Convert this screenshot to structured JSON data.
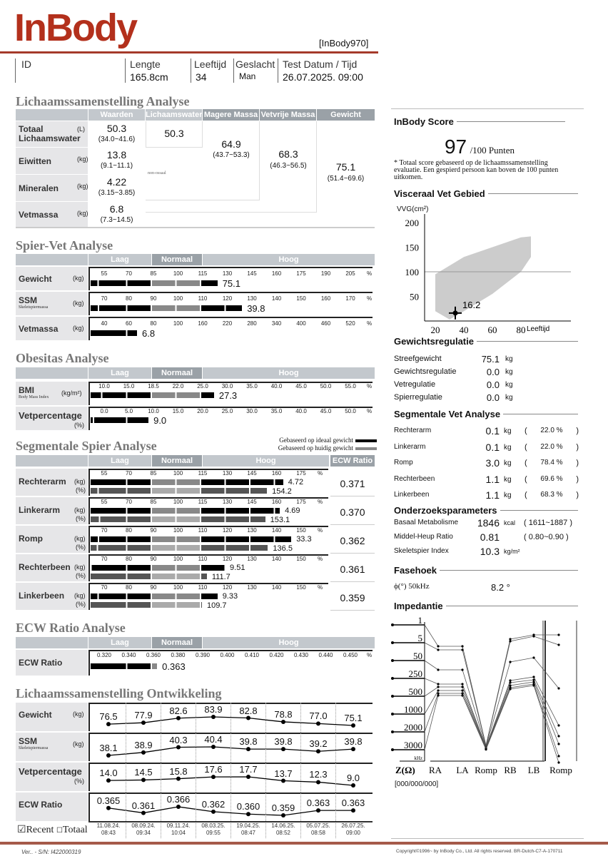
{
  "header": {
    "logo": "InBody",
    "model": "[InBody970]",
    "colors": {
      "brand": "#b3301c"
    }
  },
  "info": {
    "id_label": "ID",
    "height_label": "Lengte",
    "height": "165.8cm",
    "age_label": "Leeftijd",
    "age": "34",
    "sex_label": "Geslacht",
    "sex": "Man",
    "date_label": "Test Datum / Tijd",
    "date": "26.07.2025. 09:00"
  },
  "body_comp": {
    "title": "Lichaamssamenstelling Analyse",
    "columns": [
      "Waarden",
      "Lichaamswater",
      "Magere Massa",
      "Vetvrije Massa",
      "Gewicht"
    ],
    "rows": [
      {
        "label": "Totaal Lichaamswater",
        "unit": "(L)",
        "value": "50.3",
        "range": "(34.0~41.6)"
      },
      {
        "label": "Eiwitten",
        "unit": "(kg)",
        "value": "13.8",
        "range": "(9.1~11.1)"
      },
      {
        "label": "Mineralen",
        "unit": "(kg)",
        "value": "4.22",
        "range": "(3.15~3.85)"
      },
      {
        "label": "Vetmassa",
        "unit": "(kg)",
        "value": "6.8",
        "range": "(7.3~14.5)"
      }
    ],
    "water": "50.3",
    "lean": "64.9",
    "lean_range": "(43.7~53.3)",
    "ffm": "68.3",
    "ffm_range": "(46.3~56.5)",
    "weight": "75.1",
    "weight_range": "(51.4~69.6)",
    "non_osseous": "non-ossaal"
  },
  "bands": {
    "low": "Laag",
    "normal": "Normaal",
    "high": "Hoog",
    "ecw": "ECW Ratio"
  },
  "muscle_fat": {
    "title": "Spier-Vet Analyse",
    "rows": [
      {
        "label": "Gewicht",
        "sub": "",
        "unit": "(kg)",
        "ticks": [
          "55",
          "70",
          "85",
          "100",
          "115",
          "130",
          "145",
          "160",
          "175",
          "190",
          "205"
        ],
        "level_percent": 124,
        "value": "75.1"
      },
      {
        "label": "SSM",
        "sub": "Skeletspiermassa",
        "unit": "(kg)",
        "ticks": [
          "70",
          "80",
          "90",
          "100",
          "110",
          "120",
          "130",
          "140",
          "150",
          "160",
          "170"
        ],
        "level_percent": 139,
        "value": "39.8"
      },
      {
        "label": "Vetmassa",
        "sub": "",
        "unit": "(kg)",
        "ticks": [
          "40",
          "60",
          "80",
          "100",
          "160",
          "220",
          "280",
          "340",
          "400",
          "460",
          "520"
        ],
        "level_percent": 75,
        "value": "6.8"
      }
    ]
  },
  "obesity": {
    "title": "Obesitas Analyse",
    "rows": [
      {
        "label": "BMI",
        "sub": "Body Mass Index",
        "unit": "(kg/m²)",
        "ticks": [
          "10.0",
          "15.0",
          "18.5",
          "22.0",
          "25.0",
          "30.0",
          "35.0",
          "40.0",
          "45.0",
          "50.0",
          "55.0"
        ],
        "level": 27.3,
        "value": "27.3"
      },
      {
        "label": "Vetpercentage",
        "sub": "",
        "unit": "(%)",
        "ticks": [
          "0.0",
          "5.0",
          "10.0",
          "15.0",
          "20.0",
          "25.0",
          "30.0",
          "35.0",
          "40.0",
          "45.0",
          "50.0"
        ],
        "level": 9.0,
        "value": "9.0"
      }
    ]
  },
  "segmental_lean": {
    "title": "Segmentale Spier Analyse",
    "legend_ideal": "Gebaseerd op ideaal gewicht",
    "legend_current": "Gebaseerd op huidig gewicht",
    "rows": [
      {
        "label": "Rechterarm",
        "ticks": [
          "55",
          "70",
          "85",
          "100",
          "115",
          "130",
          "145",
          "160",
          "175"
        ],
        "kg": "4.72",
        "kg_level_percent": 164,
        "pct": "154.2",
        "pct_level": 154.2,
        "ecw": "0.371"
      },
      {
        "label": "Linkerarm",
        "ticks": [
          "55",
          "70",
          "85",
          "100",
          "115",
          "130",
          "145",
          "160",
          "175"
        ],
        "kg": "4.69",
        "kg_level_percent": 162,
        "pct": "153.1",
        "pct_level": 153.1,
        "ecw": "0.370"
      },
      {
        "label": "Romp",
        "ticks": [
          "70",
          "80",
          "90",
          "100",
          "110",
          "120",
          "130",
          "140",
          "150"
        ],
        "kg": "33.3",
        "kg_level_percent": 146,
        "pct": "136.5",
        "pct_level": 136.5,
        "ecw": "0.362"
      },
      {
        "label": "Rechterbeen",
        "ticks": [
          "70",
          "80",
          "90",
          "100",
          "110",
          "120",
          "130",
          "140",
          "150"
        ],
        "kg": "9.51",
        "kg_level_percent": 119,
        "pct": "111.7",
        "pct_level": 111.7,
        "ecw": "0.361"
      },
      {
        "label": "Linkerbeen",
        "ticks": [
          "70",
          "80",
          "90",
          "100",
          "110",
          "120",
          "130",
          "140",
          "150"
        ],
        "kg": "9.33",
        "kg_level_percent": 116,
        "pct": "109.7",
        "pct_level": 109.7,
        "ecw": "0.359"
      }
    ]
  },
  "ecw_analysis": {
    "title": "ECW Ratio Analyse",
    "label": "ECW Ratio",
    "ticks": [
      "0.320",
      "0.340",
      "0.360",
      "0.380",
      "0.390",
      "0.400",
      "0.410",
      "0.420",
      "0.430",
      "0.440",
      "0.450"
    ],
    "level": 0.363,
    "value": "0.363"
  },
  "history": {
    "title": "Lichaamssamenstelling Ontwikkeling",
    "rows": [
      {
        "label": "Gewicht",
        "sub": "",
        "unit": "(kg)",
        "values": [
          "76.5",
          "77.9",
          "82.6",
          "83.9",
          "82.8",
          "78.8",
          "77.0",
          "75.1"
        ]
      },
      {
        "label": "SSM",
        "sub": "Skeletspiermassa",
        "unit": "(kg)",
        "values": [
          "38.1",
          "38.9",
          "40.3",
          "40.4",
          "39.8",
          "39.8",
          "39.2",
          "39.8"
        ]
      },
      {
        "label": "Vetpercentage",
        "sub": "",
        "unit": "(%)",
        "values": [
          "14.0",
          "14.5",
          "15.8",
          "17.6",
          "17.7",
          "13.7",
          "12.3",
          "9.0"
        ]
      },
      {
        "label": "ECW Ratio",
        "sub": "",
        "unit": "",
        "values": [
          "0.365",
          "0.361",
          "0.366",
          "0.362",
          "0.360",
          "0.359",
          "0.363",
          "0.363"
        ]
      }
    ],
    "dates": [
      [
        "11.08.24.",
        "08:43"
      ],
      [
        "08.09.24.",
        "09:34"
      ],
      [
        "09.11.24.",
        "10:04"
      ],
      [
        "08.03.25.",
        "09:55"
      ],
      [
        "19.04.25.",
        "08:47"
      ],
      [
        "14.06.25.",
        "08:52"
      ],
      [
        "05.07.25.",
        "08:58"
      ],
      [
        "26.07.25.",
        "09:00"
      ]
    ],
    "recent": "Recent",
    "total": "Totaal",
    "recent_checked": true
  },
  "score": {
    "title": "InBody Score",
    "value": "97",
    "max": "/100 Punten",
    "note": "* Totaal score gebaseerd op de lichaamssamenstelling evaluatie. Een gespierd persoon kan boven de 100 punten uitkomen."
  },
  "visceral": {
    "title": "Visceraal Vet Gebied",
    "ylabel": "VVG(cm²)",
    "xlabel": "Leeftijd",
    "yticks": [
      "200",
      "150",
      "100",
      "50"
    ],
    "xticks": [
      "20",
      "40",
      "60",
      "80"
    ],
    "point": {
      "age": 34,
      "value": 16.2
    },
    "value": "16.2"
  },
  "weight_control": {
    "title": "Gewichtsregulatie",
    "rows": [
      {
        "label": "Streefgewicht",
        "value": "75.1",
        "unit": "kg"
      },
      {
        "label": "Gewichtsregulatie",
        "value": "0.0",
        "unit": "kg"
      },
      {
        "label": "Vetregulatie",
        "value": "0.0",
        "unit": "kg"
      },
      {
        "label": "Spierregulatie",
        "value": "0.0",
        "unit": "kg"
      }
    ]
  },
  "segmental_fat": {
    "title": "Segmentale Vet Analyse",
    "rows": [
      {
        "label": "Rechterarm",
        "value": "0.1",
        "unit": "kg",
        "pct": "22.0 %"
      },
      {
        "label": "Linkerarm",
        "value": "0.1",
        "unit": "kg",
        "pct": "22.0 %"
      },
      {
        "label": "Romp",
        "value": "3.0",
        "unit": "kg",
        "pct": "78.4 %"
      },
      {
        "label": "Rechterbeen",
        "value": "1.1",
        "unit": "kg",
        "pct": "69.6 %"
      },
      {
        "label": "Linkerbeen",
        "value": "1.1",
        "unit": "kg",
        "pct": "68.3 %"
      }
    ]
  },
  "params": {
    "title": "Onderzoeksparameters",
    "rows": [
      {
        "label": "Basaal Metabolisme",
        "value": "1846",
        "unit": "kcal",
        "range": "( 1611~1887 )"
      },
      {
        "label": "Middel-Heup Ratio",
        "value": "0.81",
        "unit": "",
        "range": "( 0.80~0.90 )"
      },
      {
        "label": "Skeletspier Index",
        "value": "10.3",
        "unit": "kg/m²",
        "range": ""
      }
    ]
  },
  "phase": {
    "title": "Fasehoek",
    "label": "ϕ(°) 50kHz",
    "value": "8.2 °"
  },
  "impedance": {
    "title": "Impedantie",
    "freqs": [
      "1",
      "5",
      "50",
      "250",
      "500",
      "1000",
      "2000",
      "3000"
    ],
    "freq_unit": "kHz",
    "z_label": "Z(Ω)",
    "segments": [
      "RA",
      "LA",
      "Romp",
      "RB",
      "LB",
      "Romp"
    ],
    "code": "[000/000/000]"
  },
  "footer": {
    "left": "Ver.. - S/N: I422000319",
    "right": "Copyright©1996~ by InBody Co., Ltd. All rights reserved. BR-Dutch-C7-A-170711"
  }
}
